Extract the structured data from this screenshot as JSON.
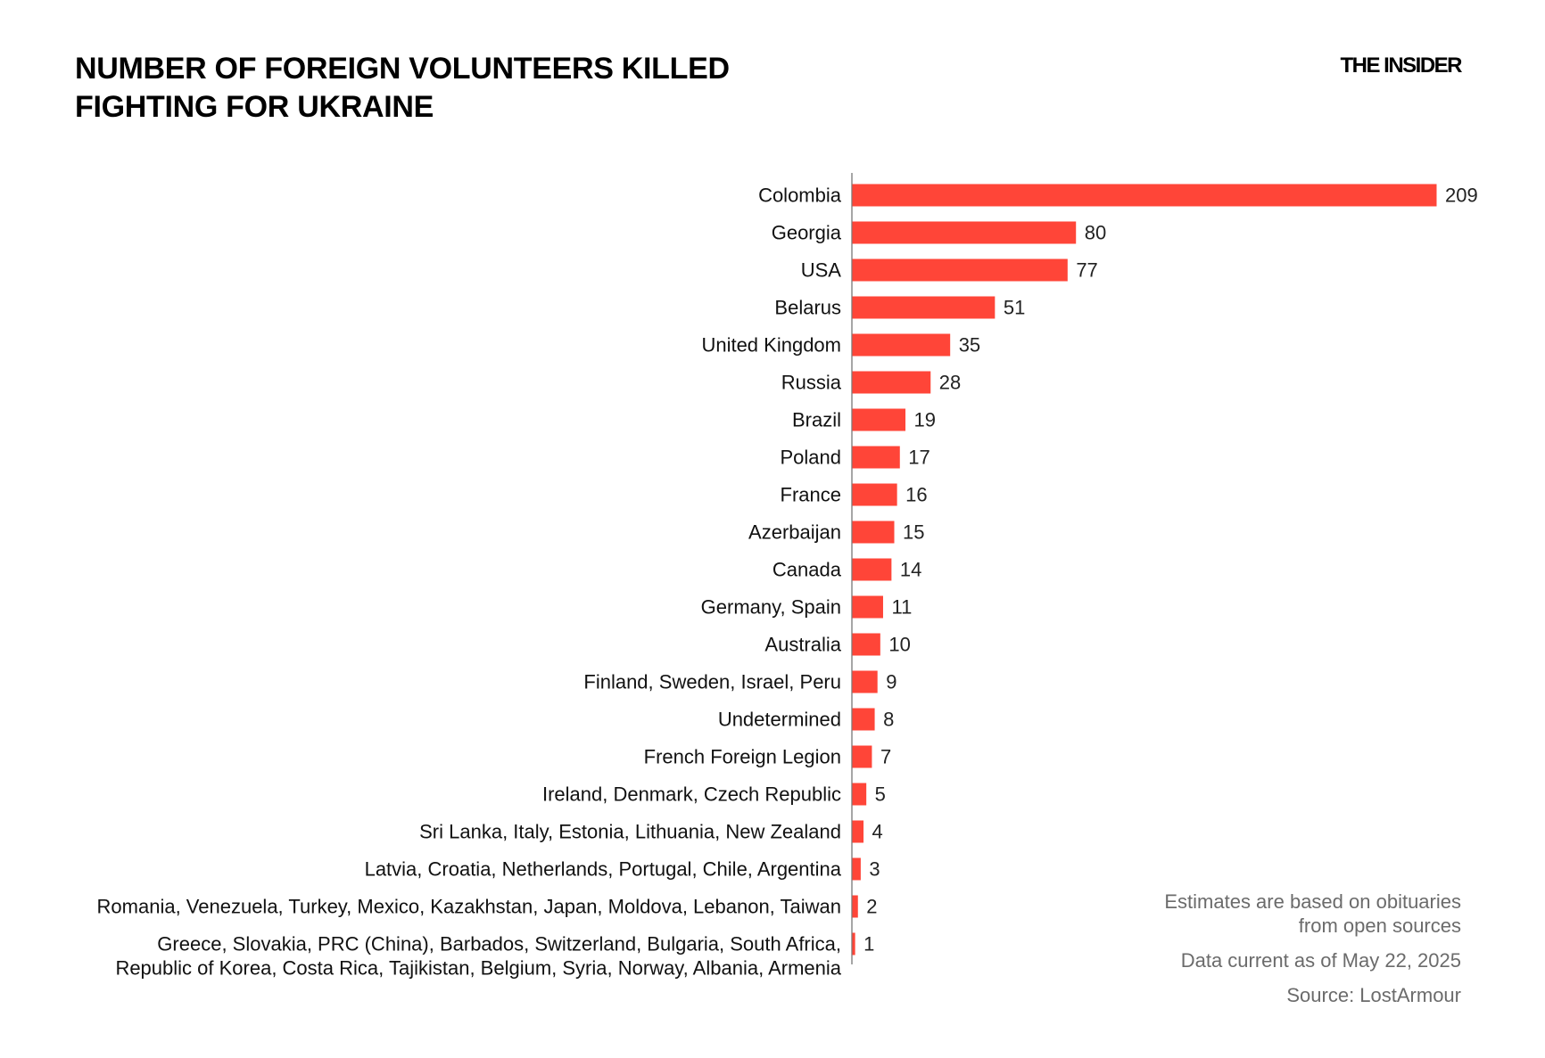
{
  "header": {
    "title_line1": "NUMBER OF FOREIGN VOLUNTEERS KILLED",
    "title_line2": "FIGHTING FOR UKRAINE",
    "logo": "THE INSIDER"
  },
  "footer": {
    "note_line1": "Estimates are based on obituaries",
    "note_line2": "from open sources",
    "date": "Data current as of May 22, 2025",
    "source": "Source: LostArmour"
  },
  "chart_data": {
    "type": "bar",
    "orientation": "horizontal",
    "title": "NUMBER OF FOREIGN VOLUNTEERS KILLED FIGHTING FOR UKRAINE",
    "bar_color": "#ff4538",
    "categories": [
      [
        "Colombia"
      ],
      [
        "Georgia"
      ],
      [
        "USA"
      ],
      [
        "Belarus"
      ],
      [
        "United Kingdom"
      ],
      [
        "Russia"
      ],
      [
        "Brazil"
      ],
      [
        "Poland"
      ],
      [
        "France"
      ],
      [
        "Azerbaijan"
      ],
      [
        "Canada"
      ],
      [
        "Germany, Spain"
      ],
      [
        "Australia"
      ],
      [
        "Finland, Sweden, Israel, Peru"
      ],
      [
        "Undetermined"
      ],
      [
        "French Foreign Legion"
      ],
      [
        "Ireland, Denmark, Czech Republic"
      ],
      [
        "Sri Lanka, Italy, Estonia, Lithuania, New Zealand"
      ],
      [
        "Latvia, Croatia, Netherlands, Portugal, Chile, Argentina"
      ],
      [
        "Romania, Venezuela, Turkey, Mexico, Kazakhstan, Japan, Moldova, Lebanon, Taiwan"
      ],
      [
        "Greece, Slovakia, PRC (China), Barbados, Switzerland, Bulgaria, South Africa,",
        "Republic of Korea, Costa Rica, Tajikistan, Belgium, Syria, Norway, Albania, Armenia"
      ]
    ],
    "values": [
      209,
      80,
      77,
      51,
      35,
      28,
      19,
      17,
      16,
      15,
      14,
      11,
      10,
      9,
      8,
      7,
      5,
      4,
      3,
      2,
      1
    ],
    "data_labels": [
      "209",
      "80",
      "77",
      "51",
      "35",
      "28",
      "19",
      "17",
      "16",
      "15",
      "14",
      "11",
      "10",
      "9",
      "8",
      "7",
      "5",
      "4",
      "3",
      "2",
      "1"
    ],
    "grid": false
  }
}
